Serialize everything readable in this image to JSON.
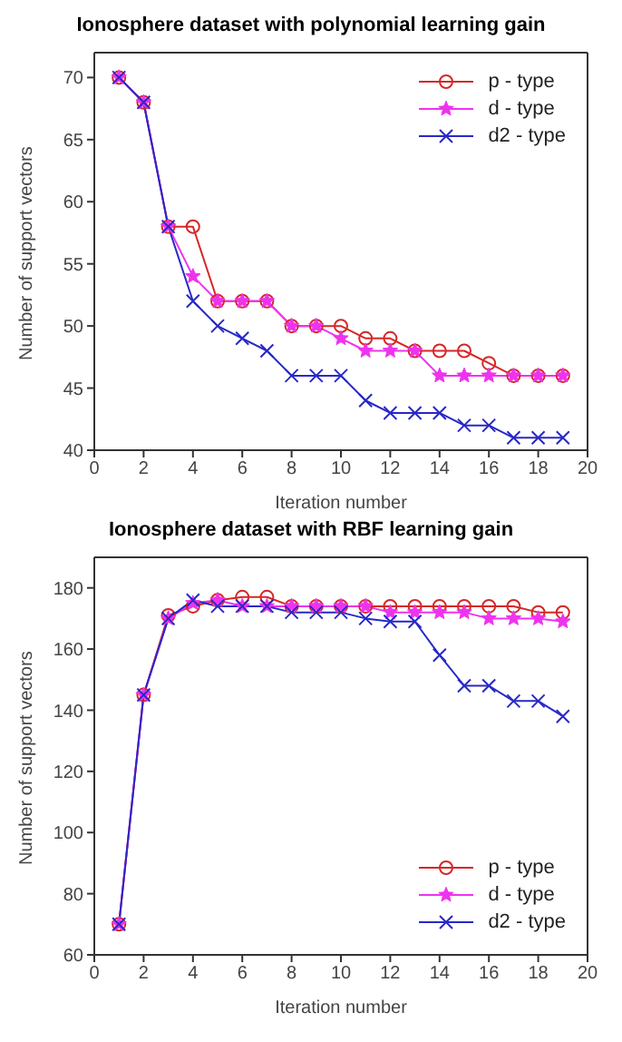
{
  "chart_data": [
    {
      "type": "line",
      "title": "Ionosphere dataset with polynomial learning gain",
      "xlabel": "Iteration number",
      "ylabel": "Number of support vectors",
      "x": [
        1,
        2,
        3,
        4,
        5,
        6,
        7,
        8,
        9,
        10,
        11,
        12,
        13,
        14,
        15,
        16,
        17,
        18,
        19
      ],
      "xlim": [
        0,
        20
      ],
      "xticks": [
        0,
        2,
        4,
        6,
        8,
        10,
        12,
        14,
        16,
        18,
        20
      ],
      "ylim": [
        40,
        72
      ],
      "yticks": [
        40,
        45,
        50,
        55,
        60,
        65,
        70
      ],
      "grid": false,
      "legend": "top right",
      "series": [
        {
          "name": "p - type",
          "color": "#d62728",
          "marker": "circle",
          "values": [
            70,
            68,
            58,
            58,
            52,
            52,
            52,
            50,
            50,
            50,
            49,
            49,
            48,
            48,
            48,
            47,
            46,
            46,
            46
          ]
        },
        {
          "name": "d - type",
          "color": "#ee33ee",
          "marker": "star",
          "values": [
            70,
            68,
            58,
            54,
            52,
            52,
            52,
            50,
            50,
            49,
            48,
            48,
            48,
            46,
            46,
            46,
            46,
            46,
            46
          ]
        },
        {
          "name": "d2 - type",
          "color": "#2828c8",
          "marker": "cross",
          "values": [
            70,
            68,
            58,
            52,
            50,
            49,
            48,
            46,
            46,
            46,
            44,
            43,
            43,
            43,
            42,
            42,
            41,
            41,
            41
          ]
        }
      ]
    },
    {
      "type": "line",
      "title": "Ionosphere dataset with RBF learning gain",
      "xlabel": "Iteration number",
      "ylabel": "Number of support vectors",
      "x": [
        1,
        2,
        3,
        4,
        5,
        6,
        7,
        8,
        9,
        10,
        11,
        12,
        13,
        14,
        15,
        16,
        17,
        18,
        19
      ],
      "xlim": [
        0,
        20
      ],
      "xticks": [
        0,
        2,
        4,
        6,
        8,
        10,
        12,
        14,
        16,
        18,
        20
      ],
      "ylim": [
        60,
        190
      ],
      "yticks": [
        60,
        80,
        100,
        120,
        140,
        160,
        180
      ],
      "grid": false,
      "legend": "bottom right",
      "series": [
        {
          "name": "p - type",
          "color": "#d62728",
          "marker": "circle",
          "values": [
            70,
            145,
            171,
            174,
            176,
            177,
            177,
            174,
            174,
            174,
            174,
            174,
            174,
            174,
            174,
            174,
            174,
            172,
            172
          ]
        },
        {
          "name": "d - type",
          "color": "#ee33ee",
          "marker": "star",
          "values": [
            70,
            145,
            170,
            175,
            176,
            174,
            174,
            174,
            174,
            174,
            174,
            172,
            172,
            172,
            172,
            170,
            170,
            170,
            169
          ]
        },
        {
          "name": "d2 - type",
          "color": "#2828c8",
          "marker": "cross",
          "values": [
            70,
            145,
            170,
            176,
            174,
            174,
            174,
            172,
            172,
            172,
            170,
            169,
            169,
            158,
            148,
            148,
            143,
            143,
            138
          ]
        }
      ]
    }
  ]
}
